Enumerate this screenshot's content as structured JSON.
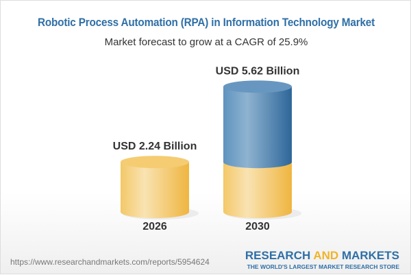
{
  "title": "Robotic Process Automation (RPA) in Information Technology Market",
  "subtitle": "Market forecast to grow at a CAGR of 25.9%",
  "chart_data": {
    "type": "bar",
    "style": "3d-cylinder",
    "categories": [
      "2026",
      "2030"
    ],
    "values": [
      2.24,
      5.62
    ],
    "data_labels": [
      "USD 2.24 Billion",
      "USD 5.62 Billion"
    ],
    "unit": "USD Billion",
    "cagr": "25.9%",
    "colors": {
      "base": "#f3c35f",
      "growth": "#4f86b5"
    }
  },
  "footer": {
    "url": "https://www.researchandmarkets.com/reports/5954624",
    "logo_part1": "RESEARCH",
    "logo_part2": "AND",
    "logo_part3": "MARKETS",
    "logo_tagline": "THE WORLD'S LARGEST MARKET RESEARCH STORE"
  }
}
